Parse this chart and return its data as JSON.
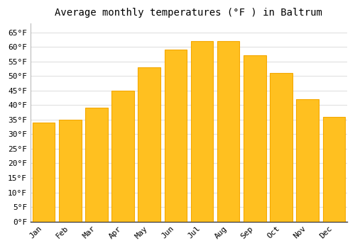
{
  "months": [
    "Jan",
    "Feb",
    "Mar",
    "Apr",
    "May",
    "Jun",
    "Jul",
    "Aug",
    "Sep",
    "Oct",
    "Nov",
    "Dec"
  ],
  "values": [
    34,
    35,
    39,
    45,
    53,
    59,
    62,
    62,
    57,
    51,
    42,
    36
  ],
  "bar_color": "#FFC020",
  "bar_edge_color": "#F5A800",
  "title": "Average monthly temperatures (°F ) in Baltrum",
  "ylim": [
    0,
    68
  ],
  "yticks": [
    0,
    5,
    10,
    15,
    20,
    25,
    30,
    35,
    40,
    45,
    50,
    55,
    60,
    65
  ],
  "ytick_labels": [
    "0°F",
    "5°F",
    "10°F",
    "15°F",
    "20°F",
    "25°F",
    "30°F",
    "35°F",
    "40°F",
    "45°F",
    "50°F",
    "55°F",
    "60°F",
    "65°F"
  ],
  "background_color": "#ffffff",
  "grid_color": "#e0e0e0",
  "title_fontsize": 10,
  "tick_fontsize": 8,
  "bar_width": 0.85
}
